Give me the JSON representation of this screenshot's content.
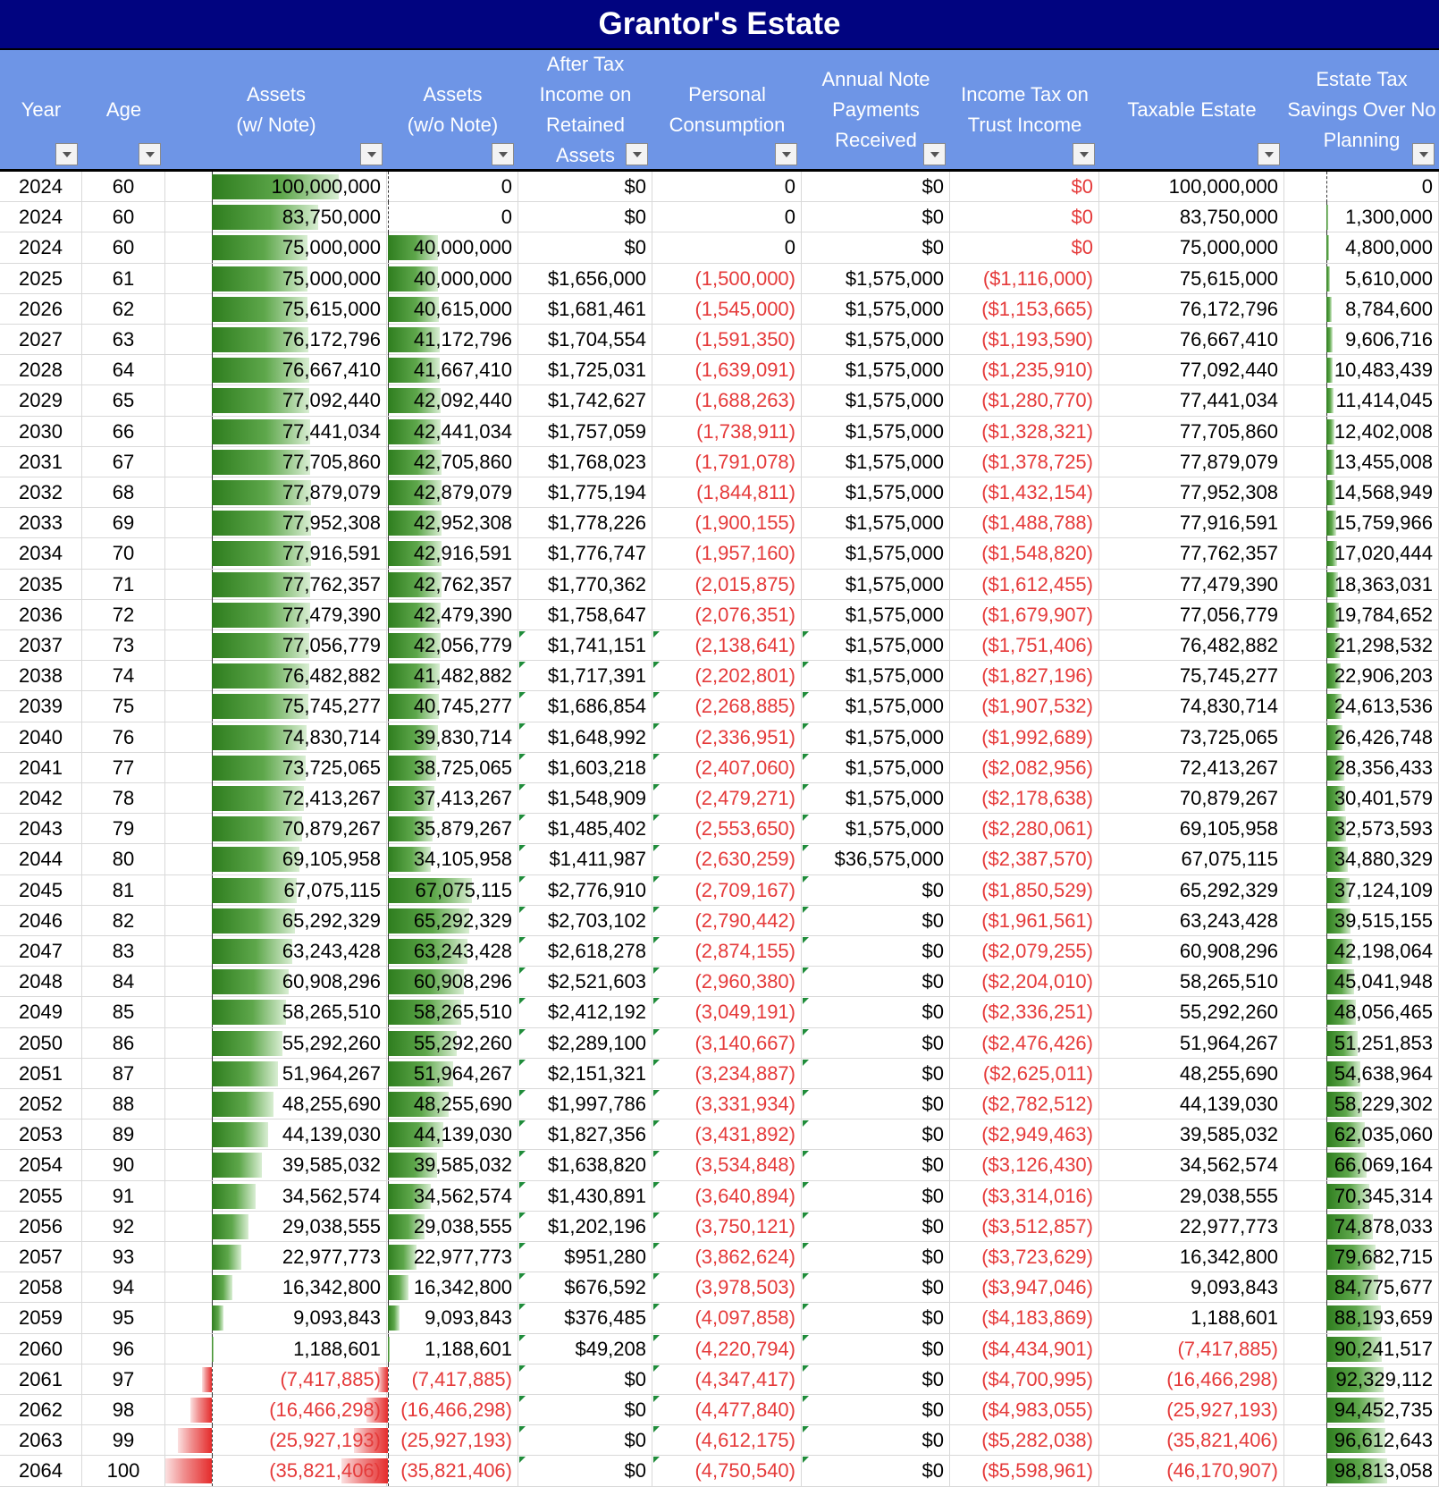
{
  "title": "Grantor's Estate",
  "columns": [
    "Year",
    "Age",
    "Assets\n(w/ Note)",
    "Assets\n(w/o Note)",
    "After Tax\nIncome on\nRetained\nAssets",
    "Personal\nConsumption",
    "Annual Note\nPayments\nReceived",
    "Income Tax on\nTrust Income",
    "Taxable Estate",
    "Estate Tax\nSavings Over No\nPlanning"
  ],
  "colors": {
    "title_bg": "#010480",
    "header_bg": "#6e95e6",
    "negative_text": "#e53a3a",
    "bar_positive": "#2e7d1e",
    "bar_negative": "#e52c2c"
  },
  "icons": {
    "filter": "filter-dropdown-icon"
  },
  "rows": [
    {
      "year": "2024",
      "age": "60",
      "a_note": "100,000,000",
      "a_no_note": "0",
      "income": "$0",
      "consumption": "0",
      "note_pay": "$0",
      "income_tax": "$0",
      "taxable": "100,000,000",
      "savings": "0",
      "a_note_v": 100000000,
      "a_no_note_v": 0,
      "savings_v": 0
    },
    {
      "year": "2024",
      "age": "60",
      "a_note": "83,750,000",
      "a_no_note": "0",
      "income": "$0",
      "consumption": "0",
      "note_pay": "$0",
      "income_tax": "$0",
      "taxable": "83,750,000",
      "savings": "1,300,000",
      "a_note_v": 83750000,
      "a_no_note_v": 0,
      "savings_v": 1300000
    },
    {
      "year": "2024",
      "age": "60",
      "a_note": "75,000,000",
      "a_no_note": "40,000,000",
      "income": "$0",
      "consumption": "0",
      "note_pay": "$0",
      "income_tax": "$0",
      "taxable": "75,000,000",
      "savings": "4,800,000",
      "a_note_v": 75000000,
      "a_no_note_v": 40000000,
      "savings_v": 4800000
    },
    {
      "year": "2025",
      "age": "61",
      "a_note": "75,000,000",
      "a_no_note": "40,000,000",
      "income": "$1,656,000",
      "consumption": "(1,500,000)",
      "note_pay": "$1,575,000",
      "income_tax": "($1,116,000)",
      "taxable": "75,615,000",
      "savings": "5,610,000",
      "a_note_v": 75000000,
      "a_no_note_v": 40000000,
      "savings_v": 5610000
    },
    {
      "year": "2026",
      "age": "62",
      "a_note": "75,615,000",
      "a_no_note": "40,615,000",
      "income": "$1,681,461",
      "consumption": "(1,545,000)",
      "note_pay": "$1,575,000",
      "income_tax": "($1,153,665)",
      "taxable": "76,172,796",
      "savings": "8,784,600",
      "a_note_v": 75615000,
      "a_no_note_v": 40615000,
      "savings_v": 8784600
    },
    {
      "year": "2027",
      "age": "63",
      "a_note": "76,172,796",
      "a_no_note": "41,172,796",
      "income": "$1,704,554",
      "consumption": "(1,591,350)",
      "note_pay": "$1,575,000",
      "income_tax": "($1,193,590)",
      "taxable": "76,667,410",
      "savings": "9,606,716",
      "a_note_v": 76172796,
      "a_no_note_v": 41172796,
      "savings_v": 9606716
    },
    {
      "year": "2028",
      "age": "64",
      "a_note": "76,667,410",
      "a_no_note": "41,667,410",
      "income": "$1,725,031",
      "consumption": "(1,639,091)",
      "note_pay": "$1,575,000",
      "income_tax": "($1,235,910)",
      "taxable": "77,092,440",
      "savings": "10,483,439",
      "a_note_v": 76667410,
      "a_no_note_v": 41667410,
      "savings_v": 10483439
    },
    {
      "year": "2029",
      "age": "65",
      "a_note": "77,092,440",
      "a_no_note": "42,092,440",
      "income": "$1,742,627",
      "consumption": "(1,688,263)",
      "note_pay": "$1,575,000",
      "income_tax": "($1,280,770)",
      "taxable": "77,441,034",
      "savings": "11,414,045",
      "a_note_v": 77092440,
      "a_no_note_v": 42092440,
      "savings_v": 11414045
    },
    {
      "year": "2030",
      "age": "66",
      "a_note": "77,441,034",
      "a_no_note": "42,441,034",
      "income": "$1,757,059",
      "consumption": "(1,738,911)",
      "note_pay": "$1,575,000",
      "income_tax": "($1,328,321)",
      "taxable": "77,705,860",
      "savings": "12,402,008",
      "a_note_v": 77441034,
      "a_no_note_v": 42441034,
      "savings_v": 12402008
    },
    {
      "year": "2031",
      "age": "67",
      "a_note": "77,705,860",
      "a_no_note": "42,705,860",
      "income": "$1,768,023",
      "consumption": "(1,791,078)",
      "note_pay": "$1,575,000",
      "income_tax": "($1,378,725)",
      "taxable": "77,879,079",
      "savings": "13,455,008",
      "a_note_v": 77705860,
      "a_no_note_v": 42705860,
      "savings_v": 13455008
    },
    {
      "year": "2032",
      "age": "68",
      "a_note": "77,879,079",
      "a_no_note": "42,879,079",
      "income": "$1,775,194",
      "consumption": "(1,844,811)",
      "note_pay": "$1,575,000",
      "income_tax": "($1,432,154)",
      "taxable": "77,952,308",
      "savings": "14,568,949",
      "a_note_v": 77879079,
      "a_no_note_v": 42879079,
      "savings_v": 14568949
    },
    {
      "year": "2033",
      "age": "69",
      "a_note": "77,952,308",
      "a_no_note": "42,952,308",
      "income": "$1,778,226",
      "consumption": "(1,900,155)",
      "note_pay": "$1,575,000",
      "income_tax": "($1,488,788)",
      "taxable": "77,916,591",
      "savings": "15,759,966",
      "a_note_v": 77952308,
      "a_no_note_v": 42952308,
      "savings_v": 15759966
    },
    {
      "year": "2034",
      "age": "70",
      "a_note": "77,916,591",
      "a_no_note": "42,916,591",
      "income": "$1,776,747",
      "consumption": "(1,957,160)",
      "note_pay": "$1,575,000",
      "income_tax": "($1,548,820)",
      "taxable": "77,762,357",
      "savings": "17,020,444",
      "a_note_v": 77916591,
      "a_no_note_v": 42916591,
      "savings_v": 17020444
    },
    {
      "year": "2035",
      "age": "71",
      "a_note": "77,762,357",
      "a_no_note": "42,762,357",
      "income": "$1,770,362",
      "consumption": "(2,015,875)",
      "note_pay": "$1,575,000",
      "income_tax": "($1,612,455)",
      "taxable": "77,479,390",
      "savings": "18,363,031",
      "a_note_v": 77762357,
      "a_no_note_v": 42762357,
      "savings_v": 18363031
    },
    {
      "year": "2036",
      "age": "72",
      "a_note": "77,479,390",
      "a_no_note": "42,479,390",
      "income": "$1,758,647",
      "consumption": "(2,076,351)",
      "note_pay": "$1,575,000",
      "income_tax": "($1,679,907)",
      "taxable": "77,056,779",
      "savings": "19,784,652",
      "a_note_v": 77479390,
      "a_no_note_v": 42479390,
      "savings_v": 19784652
    },
    {
      "year": "2037",
      "age": "73",
      "a_note": "77,056,779",
      "a_no_note": "42,056,779",
      "income": "$1,741,151",
      "consumption": "(2,138,641)",
      "note_pay": "$1,575,000",
      "income_tax": "($1,751,406)",
      "taxable": "76,482,882",
      "savings": "21,298,532",
      "a_note_v": 77056779,
      "a_no_note_v": 42056779,
      "savings_v": 21298532
    },
    {
      "year": "2038",
      "age": "74",
      "a_note": "76,482,882",
      "a_no_note": "41,482,882",
      "income": "$1,717,391",
      "consumption": "(2,202,801)",
      "note_pay": "$1,575,000",
      "income_tax": "($1,827,196)",
      "taxable": "75,745,277",
      "savings": "22,906,203",
      "a_note_v": 76482882,
      "a_no_note_v": 41482882,
      "savings_v": 22906203
    },
    {
      "year": "2039",
      "age": "75",
      "a_note": "75,745,277",
      "a_no_note": "40,745,277",
      "income": "$1,686,854",
      "consumption": "(2,268,885)",
      "note_pay": "$1,575,000",
      "income_tax": "($1,907,532)",
      "taxable": "74,830,714",
      "savings": "24,613,536",
      "a_note_v": 75745277,
      "a_no_note_v": 40745277,
      "savings_v": 24613536
    },
    {
      "year": "2040",
      "age": "76",
      "a_note": "74,830,714",
      "a_no_note": "39,830,714",
      "income": "$1,648,992",
      "consumption": "(2,336,951)",
      "note_pay": "$1,575,000",
      "income_tax": "($1,992,689)",
      "taxable": "73,725,065",
      "savings": "26,426,748",
      "a_note_v": 74830714,
      "a_no_note_v": 39830714,
      "savings_v": 26426748
    },
    {
      "year": "2041",
      "age": "77",
      "a_note": "73,725,065",
      "a_no_note": "38,725,065",
      "income": "$1,603,218",
      "consumption": "(2,407,060)",
      "note_pay": "$1,575,000",
      "income_tax": "($2,082,956)",
      "taxable": "72,413,267",
      "savings": "28,356,433",
      "a_note_v": 73725065,
      "a_no_note_v": 38725065,
      "savings_v": 28356433
    },
    {
      "year": "2042",
      "age": "78",
      "a_note": "72,413,267",
      "a_no_note": "37,413,267",
      "income": "$1,548,909",
      "consumption": "(2,479,271)",
      "note_pay": "$1,575,000",
      "income_tax": "($2,178,638)",
      "taxable": "70,879,267",
      "savings": "30,401,579",
      "a_note_v": 72413267,
      "a_no_note_v": 37413267,
      "savings_v": 30401579
    },
    {
      "year": "2043",
      "age": "79",
      "a_note": "70,879,267",
      "a_no_note": "35,879,267",
      "income": "$1,485,402",
      "consumption": "(2,553,650)",
      "note_pay": "$1,575,000",
      "income_tax": "($2,280,061)",
      "taxable": "69,105,958",
      "savings": "32,573,593",
      "a_note_v": 70879267,
      "a_no_note_v": 35879267,
      "savings_v": 32573593
    },
    {
      "year": "2044",
      "age": "80",
      "a_note": "69,105,958",
      "a_no_note": "34,105,958",
      "income": "$1,411,987",
      "consumption": "(2,630,259)",
      "note_pay": "$36,575,000",
      "income_tax": "($2,387,570)",
      "taxable": "67,075,115",
      "savings": "34,880,329",
      "a_note_v": 69105958,
      "a_no_note_v": 34105958,
      "savings_v": 34880329
    },
    {
      "year": "2045",
      "age": "81",
      "a_note": "67,075,115",
      "a_no_note": "67,075,115",
      "income": "$2,776,910",
      "consumption": "(2,709,167)",
      "note_pay": "$0",
      "income_tax": "($1,850,529)",
      "taxable": "65,292,329",
      "savings": "37,124,109",
      "a_note_v": 67075115,
      "a_no_note_v": 67075115,
      "savings_v": 37124109
    },
    {
      "year": "2046",
      "age": "82",
      "a_note": "65,292,329",
      "a_no_note": "65,292,329",
      "income": "$2,703,102",
      "consumption": "(2,790,442)",
      "note_pay": "$0",
      "income_tax": "($1,961,561)",
      "taxable": "63,243,428",
      "savings": "39,515,155",
      "a_note_v": 65292329,
      "a_no_note_v": 65292329,
      "savings_v": 39515155
    },
    {
      "year": "2047",
      "age": "83",
      "a_note": "63,243,428",
      "a_no_note": "63,243,428",
      "income": "$2,618,278",
      "consumption": "(2,874,155)",
      "note_pay": "$0",
      "income_tax": "($2,079,255)",
      "taxable": "60,908,296",
      "savings": "42,198,064",
      "a_note_v": 63243428,
      "a_no_note_v": 63243428,
      "savings_v": 42198064
    },
    {
      "year": "2048",
      "age": "84",
      "a_note": "60,908,296",
      "a_no_note": "60,908,296",
      "income": "$2,521,603",
      "consumption": "(2,960,380)",
      "note_pay": "$0",
      "income_tax": "($2,204,010)",
      "taxable": "58,265,510",
      "savings": "45,041,948",
      "a_note_v": 60908296,
      "a_no_note_v": 60908296,
      "savings_v": 45041948
    },
    {
      "year": "2049",
      "age": "85",
      "a_note": "58,265,510",
      "a_no_note": "58,265,510",
      "income": "$2,412,192",
      "consumption": "(3,049,191)",
      "note_pay": "$0",
      "income_tax": "($2,336,251)",
      "taxable": "55,292,260",
      "savings": "48,056,465",
      "a_note_v": 58265510,
      "a_no_note_v": 58265510,
      "savings_v": 48056465
    },
    {
      "year": "2050",
      "age": "86",
      "a_note": "55,292,260",
      "a_no_note": "55,292,260",
      "income": "$2,289,100",
      "consumption": "(3,140,667)",
      "note_pay": "$0",
      "income_tax": "($2,476,426)",
      "taxable": "51,964,267",
      "savings": "51,251,853",
      "a_note_v": 55292260,
      "a_no_note_v": 55292260,
      "savings_v": 51251853
    },
    {
      "year": "2051",
      "age": "87",
      "a_note": "51,964,267",
      "a_no_note": "51,964,267",
      "income": "$2,151,321",
      "consumption": "(3,234,887)",
      "note_pay": "$0",
      "income_tax": "($2,625,011)",
      "taxable": "48,255,690",
      "savings": "54,638,964",
      "a_note_v": 51964267,
      "a_no_note_v": 51964267,
      "savings_v": 54638964
    },
    {
      "year": "2052",
      "age": "88",
      "a_note": "48,255,690",
      "a_no_note": "48,255,690",
      "income": "$1,997,786",
      "consumption": "(3,331,934)",
      "note_pay": "$0",
      "income_tax": "($2,782,512)",
      "taxable": "44,139,030",
      "savings": "58,229,302",
      "a_note_v": 48255690,
      "a_no_note_v": 48255690,
      "savings_v": 58229302
    },
    {
      "year": "2053",
      "age": "89",
      "a_note": "44,139,030",
      "a_no_note": "44,139,030",
      "income": "$1,827,356",
      "consumption": "(3,431,892)",
      "note_pay": "$0",
      "income_tax": "($2,949,463)",
      "taxable": "39,585,032",
      "savings": "62,035,060",
      "a_note_v": 44139030,
      "a_no_note_v": 44139030,
      "savings_v": 62035060
    },
    {
      "year": "2054",
      "age": "90",
      "a_note": "39,585,032",
      "a_no_note": "39,585,032",
      "income": "$1,638,820",
      "consumption": "(3,534,848)",
      "note_pay": "$0",
      "income_tax": "($3,126,430)",
      "taxable": "34,562,574",
      "savings": "66,069,164",
      "a_note_v": 39585032,
      "a_no_note_v": 39585032,
      "savings_v": 66069164
    },
    {
      "year": "2055",
      "age": "91",
      "a_note": "34,562,574",
      "a_no_note": "34,562,574",
      "income": "$1,430,891",
      "consumption": "(3,640,894)",
      "note_pay": "$0",
      "income_tax": "($3,314,016)",
      "taxable": "29,038,555",
      "savings": "70,345,314",
      "a_note_v": 34562574,
      "a_no_note_v": 34562574,
      "savings_v": 70345314
    },
    {
      "year": "2056",
      "age": "92",
      "a_note": "29,038,555",
      "a_no_note": "29,038,555",
      "income": "$1,202,196",
      "consumption": "(3,750,121)",
      "note_pay": "$0",
      "income_tax": "($3,512,857)",
      "taxable": "22,977,773",
      "savings": "74,878,033",
      "a_note_v": 29038555,
      "a_no_note_v": 29038555,
      "savings_v": 74878033
    },
    {
      "year": "2057",
      "age": "93",
      "a_note": "22,977,773",
      "a_no_note": "22,977,773",
      "income": "$951,280",
      "consumption": "(3,862,624)",
      "note_pay": "$0",
      "income_tax": "($3,723,629)",
      "taxable": "16,342,800",
      "savings": "79,682,715",
      "a_note_v": 22977773,
      "a_no_note_v": 22977773,
      "savings_v": 79682715
    },
    {
      "year": "2058",
      "age": "94",
      "a_note": "16,342,800",
      "a_no_note": "16,342,800",
      "income": "$676,592",
      "consumption": "(3,978,503)",
      "note_pay": "$0",
      "income_tax": "($3,947,046)",
      "taxable": "9,093,843",
      "savings": "84,775,677",
      "a_note_v": 16342800,
      "a_no_note_v": 16342800,
      "savings_v": 84775677
    },
    {
      "year": "2059",
      "age": "95",
      "a_note": "9,093,843",
      "a_no_note": "9,093,843",
      "income": "$376,485",
      "consumption": "(4,097,858)",
      "note_pay": "$0",
      "income_tax": "($4,183,869)",
      "taxable": "1,188,601",
      "savings": "88,193,659",
      "a_note_v": 9093843,
      "a_no_note_v": 9093843,
      "savings_v": 88193659
    },
    {
      "year": "2060",
      "age": "96",
      "a_note": "1,188,601",
      "a_no_note": "1,188,601",
      "income": "$49,208",
      "consumption": "(4,220,794)",
      "note_pay": "$0",
      "income_tax": "($4,434,901)",
      "taxable": "(7,417,885)",
      "savings": "90,241,517",
      "a_note_v": 1188601,
      "a_no_note_v": 1188601,
      "savings_v": 90241517
    },
    {
      "year": "2061",
      "age": "97",
      "a_note": "(7,417,885)",
      "a_no_note": "(7,417,885)",
      "income": "$0",
      "consumption": "(4,347,417)",
      "note_pay": "$0",
      "income_tax": "($4,700,995)",
      "taxable": "(16,466,298)",
      "savings": "92,329,112",
      "a_note_v": -7417885,
      "a_no_note_v": -7417885,
      "savings_v": 92329112
    },
    {
      "year": "2062",
      "age": "98",
      "a_note": "(16,466,298)",
      "a_no_note": "(16,466,298)",
      "income": "$0",
      "consumption": "(4,477,840)",
      "note_pay": "$0",
      "income_tax": "($4,983,055)",
      "taxable": "(25,927,193)",
      "savings": "94,452,735",
      "a_note_v": -16466298,
      "a_no_note_v": -16466298,
      "savings_v": 94452735
    },
    {
      "year": "2063",
      "age": "99",
      "a_note": "(25,927,193)",
      "a_no_note": "(25,927,193)",
      "income": "$0",
      "consumption": "(4,612,175)",
      "note_pay": "$0",
      "income_tax": "($5,282,038)",
      "taxable": "(35,821,406)",
      "savings": "96,612,643",
      "a_note_v": -25927193,
      "a_no_note_v": -25927193,
      "savings_v": 96612643
    },
    {
      "year": "2064",
      "age": "100",
      "a_note": "(35,821,406)",
      "a_no_note": "(35,821,406)",
      "income": "$0",
      "consumption": "(4,750,540)",
      "note_pay": "$0",
      "income_tax": "($5,598,961)",
      "taxable": "(46,170,907)",
      "savings": "98,813,058",
      "a_note_v": -35821406,
      "a_no_note_v": -35821406,
      "savings_v": 98813058
    }
  ]
}
